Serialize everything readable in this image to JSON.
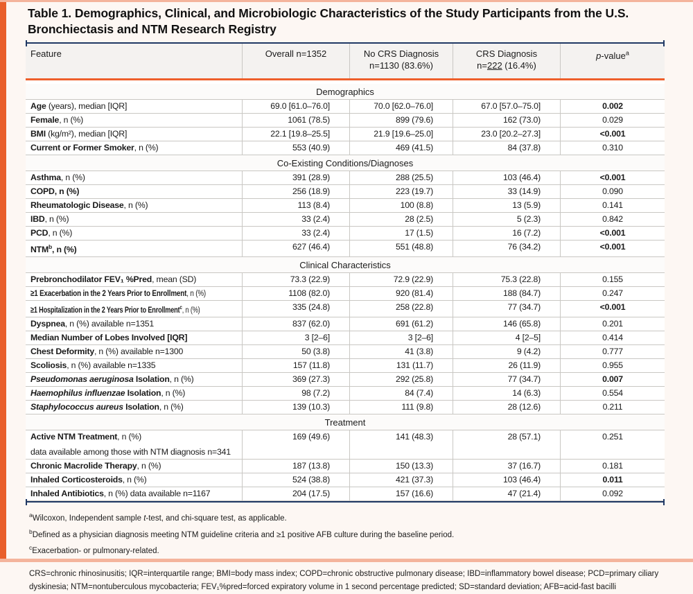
{
  "title": "Table 1. Demographics, Clinical, and Microbiologic Characteristics of the Study Participants from the U.S. Bronchiectasis and NTM Research Registry",
  "header": {
    "feature": "Feature",
    "overall": "Overall n=1352",
    "no_crs_line1": "No CRS Diagnosis",
    "no_crs_line2": "n=1130 (83.6%)",
    "crs_line1": "CRS Diagnosis",
    "crs_line2_prefix": "n=",
    "crs_line2_underlined": "222",
    "crs_line2_suffix": " (16.4%)",
    "pvalue_italic": "p",
    "pvalue_rest": "-value",
    "pvalue_sup": "a"
  },
  "sections": [
    {
      "name": "Demographics",
      "rows": [
        {
          "label": [
            {
              "t": "Age",
              "b": true
            },
            {
              "t": " (years), median [IQR]"
            }
          ],
          "overall": "69.0 [61.0–76.0]",
          "no_crs": "70.0 [62.0–76.0]",
          "crs": "67.0 [57.0–75.0]",
          "p": "0.002",
          "p_bold": true
        },
        {
          "label": [
            {
              "t": "Female",
              "b": true
            },
            {
              "t": ", n (%)"
            }
          ],
          "overall": "1061 (78.5)",
          "no_crs": "899 (79.6)",
          "crs": "162 (73.0)",
          "p": "0.029",
          "p_bold": false
        },
        {
          "label": [
            {
              "t": "BMI",
              "b": true
            },
            {
              "t": " (kg/m²), median [IQR]"
            }
          ],
          "overall": "22.1 [19.8–25.5]",
          "no_crs": "21.9 [19.6–25.0]",
          "crs": "23.0 [20.2–27.3]",
          "p": "<0.001",
          "p_bold": true
        },
        {
          "label": [
            {
              "t": "Current or Former Smoker",
              "b": true
            },
            {
              "t": ", n (%)"
            }
          ],
          "overall": "553 (40.9)",
          "no_crs": "469 (41.5)",
          "crs": "84 (37.8)",
          "p": "0.310",
          "p_bold": false
        }
      ]
    },
    {
      "name": "Co-Existing Conditions/Diagnoses",
      "rows": [
        {
          "label": [
            {
              "t": "Asthma",
              "b": true
            },
            {
              "t": ", n (%)"
            }
          ],
          "overall": "391 (28.9)",
          "no_crs": "288 (25.5)",
          "crs": "103 (46.4)",
          "p": "<0.001",
          "p_bold": true
        },
        {
          "label": [
            {
              "t": "COPD, n (%)",
              "b": true
            }
          ],
          "overall": "256 (18.9)",
          "no_crs": "223 (19.7)",
          "crs": "33 (14.9)",
          "p": "0.090",
          "p_bold": false
        },
        {
          "label": [
            {
              "t": "Rheumatologic Disease",
              "b": true
            },
            {
              "t": ", n (%)"
            }
          ],
          "overall": "113 (8.4)",
          "no_crs": "100 (8.8)",
          "crs": "13 (5.9)",
          "p": "0.141",
          "p_bold": false
        },
        {
          "label": [
            {
              "t": "IBD",
              "b": true
            },
            {
              "t": ", n (%)"
            }
          ],
          "overall": "33 (2.4)",
          "no_crs": "28 (2.5)",
          "crs": "5 (2.3)",
          "p": "0.842",
          "p_bold": false
        },
        {
          "label": [
            {
              "t": "PCD",
              "b": true
            },
            {
              "t": ", n (%)"
            }
          ],
          "overall": "33 (2.4)",
          "no_crs": "17 (1.5)",
          "crs": "16 (7.2)",
          "p": "<0.001",
          "p_bold": true
        },
        {
          "label": [
            {
              "t": "NTM",
              "b": true
            },
            {
              "t": "b",
              "b": true,
              "sup": true
            },
            {
              "t": ", n (%)",
              "b": true
            }
          ],
          "overall": "627 (46.4)",
          "no_crs": "551 (48.8)",
          "crs": "76 (34.2)",
          "p": "<0.001",
          "p_bold": true
        }
      ]
    },
    {
      "name": "Clinical Characteristics",
      "rows": [
        {
          "label": [
            {
              "t": "Prebronchodilator FEV₁ %Pred",
              "b": true
            },
            {
              "t": ", mean (SD)"
            }
          ],
          "overall": "73.3 (22.9)",
          "no_crs": "72.9 (22.9)",
          "crs": "75.3 (22.8)",
          "p": "0.155",
          "p_bold": false
        },
        {
          "label": [
            {
              "t": "≥1 Exacerbation in the 2 Years Prior to Enrollment",
              "b": true
            },
            {
              "t": ", n (%)"
            }
          ],
          "fit": 0.8,
          "overall": "1108 (82.0)",
          "no_crs": "920 (81.4)",
          "crs": "188 (84.7)",
          "p": "0.247",
          "p_bold": false
        },
        {
          "label": [
            {
              "t": "≥1 Hospitalization in the 2 Years Prior to Enrollment",
              "b": true
            },
            {
              "t": "c",
              "b": true,
              "sup": true
            },
            {
              "t": ", n (%)"
            }
          ],
          "fit": 0.74,
          "overall": "335 (24.8)",
          "no_crs": "258 (22.8)",
          "crs": "77 (34.7)",
          "p": "<0.001",
          "p_bold": true
        },
        {
          "label": [
            {
              "t": "Dyspnea",
              "b": true
            },
            {
              "t": ", n (%) available n=1351"
            }
          ],
          "overall": "837 (62.0)",
          "no_crs": "691 (61.2)",
          "crs": "146 (65.8)",
          "p": "0.201",
          "p_bold": false
        },
        {
          "label": [
            {
              "t": "Median Number of Lobes Involved [IQR]",
              "b": true
            }
          ],
          "overall": "3 [2–6]",
          "no_crs": "3 [2–6]",
          "crs": "4 [2–5]",
          "p": "0.414",
          "p_bold": false
        },
        {
          "label": [
            {
              "t": "Chest Deformity",
              "b": true
            },
            {
              "t": ", n (%) available n=1300"
            }
          ],
          "overall": "50 (3.8)",
          "no_crs": "41 (3.8)",
          "crs": "9 (4.2)",
          "p": "0.777",
          "p_bold": false
        },
        {
          "label": [
            {
              "t": "Scoliosis",
              "b": true
            },
            {
              "t": ", n (%) available n=1335"
            }
          ],
          "overall": "157 (11.8)",
          "no_crs": "131 (11.7)",
          "crs": "26 (11.9)",
          "p": "0.955",
          "p_bold": false
        },
        {
          "label": [
            {
              "t": "Pseudomonas aeruginosa",
              "b": true,
              "i": true
            },
            {
              "t": " Isolation",
              "b": true
            },
            {
              "t": ", n (%)"
            }
          ],
          "overall": "369 (27.3)",
          "no_crs": "292 (25.8)",
          "crs": "77 (34.7)",
          "p": "0.007",
          "p_bold": true
        },
        {
          "label": [
            {
              "t": "Haemophilus influenzae",
              "b": true,
              "i": true
            },
            {
              "t": " Isolation",
              "b": true
            },
            {
              "t": ", n (%)"
            }
          ],
          "overall": "98 (7.2)",
          "no_crs": "84 (7.4)",
          "crs": "14 (6.3)",
          "p": "0.554",
          "p_bold": false
        },
        {
          "label": [
            {
              "t": "Staphylococcus aureus",
              "b": true,
              "i": true
            },
            {
              "t": " Isolation",
              "b": true
            },
            {
              "t": ", n (%)"
            }
          ],
          "overall": "139 (10.3)",
          "no_crs": "111 (9.8)",
          "crs": "28 (12.6)",
          "p": "0.211",
          "p_bold": false
        }
      ]
    },
    {
      "name": "Treatment",
      "rows": [
        {
          "label": [
            {
              "t": "Active NTM Treatment",
              "b": true
            },
            {
              "t": ", n (%)"
            }
          ],
          "label2": "data available among those with NTM diagnosis n=341",
          "overall": "169 (49.6)",
          "no_crs": "141 (48.3)",
          "crs": "28 (57.1)",
          "p": "0.251",
          "p_bold": false
        },
        {
          "label": [
            {
              "t": "Chronic Macrolide Therapy",
              "b": true
            },
            {
              "t": ", n (%)"
            }
          ],
          "overall": "187 (13.8)",
          "no_crs": "150 (13.3)",
          "crs": "37 (16.7)",
          "p": "0.181",
          "p_bold": false
        },
        {
          "label": [
            {
              "t": "Inhaled Corticosteroids",
              "b": true
            },
            {
              "t": ", n (%)"
            }
          ],
          "overall": "524 (38.8)",
          "no_crs": "421 (37.3)",
          "crs": "103 (46.4)",
          "p": "0.011",
          "p_bold": true
        },
        {
          "label": [
            {
              "t": "Inhaled Antibiotics",
              "b": true
            },
            {
              "t": ", n (%) data available n=1167"
            }
          ],
          "overall": "204 (17.5)",
          "no_crs": "157 (16.6)",
          "crs": "47 (21.4)",
          "p": "0.092",
          "p_bold": false
        }
      ]
    }
  ],
  "footnotes": [
    {
      "sup": "a",
      "segments": [
        {
          "t": "Wilcoxon, Independent sample "
        },
        {
          "t": "t",
          "i": true
        },
        {
          "t": "-test, and chi-square test, as applicable."
        }
      ]
    },
    {
      "sup": "b",
      "segments": [
        {
          "t": "Defined as a physician diagnosis meeting NTM guideline criteria and ≥1 positive AFB culture during the baseline period."
        }
      ]
    },
    {
      "sup": "c",
      "segments": [
        {
          "t": "Exacerbation- or pulmonary-related."
        }
      ]
    }
  ],
  "abbreviations": "CRS=chronic rhinosinusitis; IQR=interquartile range; BMI=body mass index; COPD=chronic obstructive pulmonary disease; IBD=inflammatory bowel disease; PCD=primary ciliary dyskinesia; NTM=nontuberculous mycobacteria; FEV₁%pred=forced expiratory volume in 1 second percentage predicted; SD=standard deviation; AFB=acid-fast bacilli",
  "colors": {
    "accent_orange": "#E95F2B",
    "accent_salmon": "#F4B49C",
    "navy": "#1F3864",
    "grid_gray": "#C9C7C3",
    "header_bg": "#F4F2F0"
  }
}
